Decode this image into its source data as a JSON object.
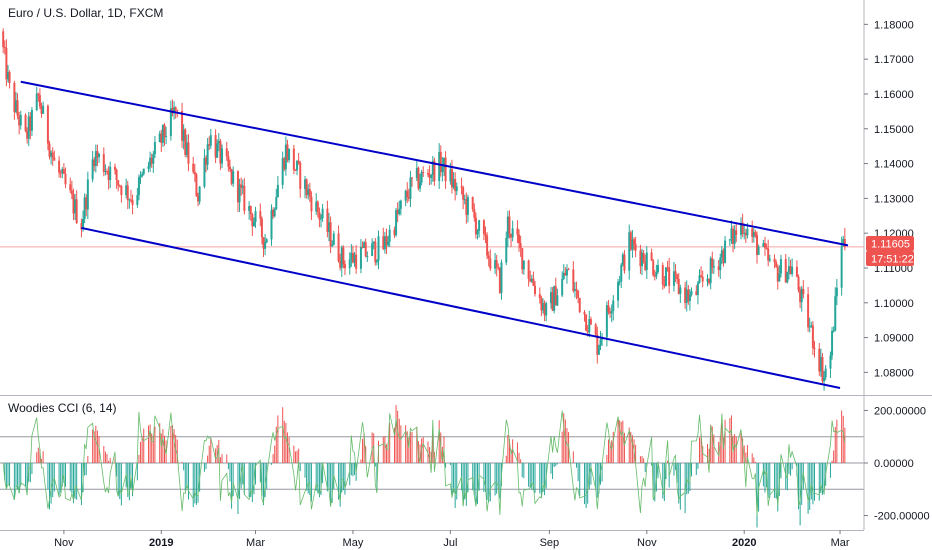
{
  "chart_data": [
    {
      "type": "candlestick",
      "title": "Euro / U.S. Dollar, 1D, FXCM",
      "y_ticks": [
        "1.18000",
        "1.17000",
        "1.16000",
        "1.15000",
        "1.14000",
        "1.13000",
        "1.12000",
        "1.11000",
        "1.10000",
        "1.09000",
        "1.08000"
      ],
      "y_tick_values": [
        1.18,
        1.17,
        1.16,
        1.15,
        1.14,
        1.13,
        1.12,
        1.11,
        1.1,
        1.09,
        1.08
      ],
      "ylim": [
        1.0735,
        1.187
      ],
      "x_ticks": [
        {
          "label": "Nov",
          "date": "2018-11-01",
          "bold": false
        },
        {
          "label": "2019",
          "date": "2019-01-01",
          "bold": true
        },
        {
          "label": "Mar",
          "date": "2019-03-01",
          "bold": false
        },
        {
          "label": "May",
          "date": "2019-05-01",
          "bold": false
        },
        {
          "label": "Jul",
          "date": "2019-07-01",
          "bold": false
        },
        {
          "label": "Sep",
          "date": "2019-09-01",
          "bold": false
        },
        {
          "label": "Nov",
          "date": "2019-11-01",
          "bold": false
        },
        {
          "label": "2020",
          "date": "2020-01-01",
          "bold": true
        },
        {
          "label": "Mar",
          "date": "2020-03-01",
          "bold": false
        }
      ],
      "xlim": [
        "2018-09-22",
        "2020-03-16"
      ],
      "up_color": "#26a69a",
      "down_color": "#ef5350",
      "last_price": 1.11605,
      "last_price_label": "1.11605",
      "countdown_label": "17:51:22",
      "price_path": [
        {
          "date": "2018-09-22",
          "close": 1.178
        },
        {
          "date": "2018-09-28",
          "close": 1.161
        },
        {
          "date": "2018-10-08",
          "close": 1.147
        },
        {
          "date": "2018-10-16",
          "close": 1.159
        },
        {
          "date": "2018-10-26",
          "close": 1.14
        },
        {
          "date": "2018-11-12",
          "close": 1.123
        },
        {
          "date": "2018-11-20",
          "close": 1.143
        },
        {
          "date": "2018-12-14",
          "close": 1.13
        },
        {
          "date": "2019-01-10",
          "close": 1.155
        },
        {
          "date": "2019-01-24",
          "close": 1.131
        },
        {
          "date": "2019-01-31",
          "close": 1.148
        },
        {
          "date": "2019-03-07",
          "close": 1.118
        },
        {
          "date": "2019-03-20",
          "close": 1.144
        },
        {
          "date": "2019-04-25",
          "close": 1.112
        },
        {
          "date": "2019-05-20",
          "close": 1.116
        },
        {
          "date": "2019-06-07",
          "close": 1.134
        },
        {
          "date": "2019-06-25",
          "close": 1.14
        },
        {
          "date": "2019-07-15",
          "close": 1.125
        },
        {
          "date": "2019-08-01",
          "close": 1.106
        },
        {
          "date": "2019-08-06",
          "close": 1.123
        },
        {
          "date": "2019-08-30",
          "close": 1.097
        },
        {
          "date": "2019-09-12",
          "close": 1.109
        },
        {
          "date": "2019-10-01",
          "close": 1.088
        },
        {
          "date": "2019-10-21",
          "close": 1.117
        },
        {
          "date": "2019-11-29",
          "close": 1.101
        },
        {
          "date": "2019-12-31",
          "close": 1.123
        },
        {
          "date": "2020-01-20",
          "close": 1.109
        },
        {
          "date": "2020-01-31",
          "close": 1.11
        },
        {
          "date": "2020-02-20",
          "close": 1.079
        },
        {
          "date": "2020-02-24",
          "close": 1.085
        },
        {
          "date": "2020-03-02",
          "close": 1.118
        },
        {
          "date": "2020-03-04",
          "close": 1.116
        }
      ],
      "channel_lines": [
        {
          "name": "upper",
          "color": "#0000c8",
          "points": [
            {
              "date": "2018-10-05",
              "price": 1.1635
            },
            {
              "date": "2020-03-06",
              "price": 1.1165
            }
          ]
        },
        {
          "name": "lower",
          "color": "#0000c8",
          "points": [
            {
              "date": "2018-11-12",
              "price": 1.1215
            },
            {
              "date": "2020-03-01",
              "price": 1.0755
            }
          ]
        }
      ],
      "grid": false
    },
    {
      "type": "histogram",
      "title": "Woodies CCI (6, 14)",
      "y_ticks": [
        "200.00000",
        "0.00000",
        "-200.00000"
      ],
      "y_tick_values": [
        200,
        0,
        -200
      ],
      "ylim": [
        -255,
        255
      ],
      "levels": [
        100,
        0,
        -100
      ],
      "up_color": "#ef5350",
      "down_color": "#26a69a",
      "line_color": "#66bb6a",
      "grid": false
    }
  ]
}
